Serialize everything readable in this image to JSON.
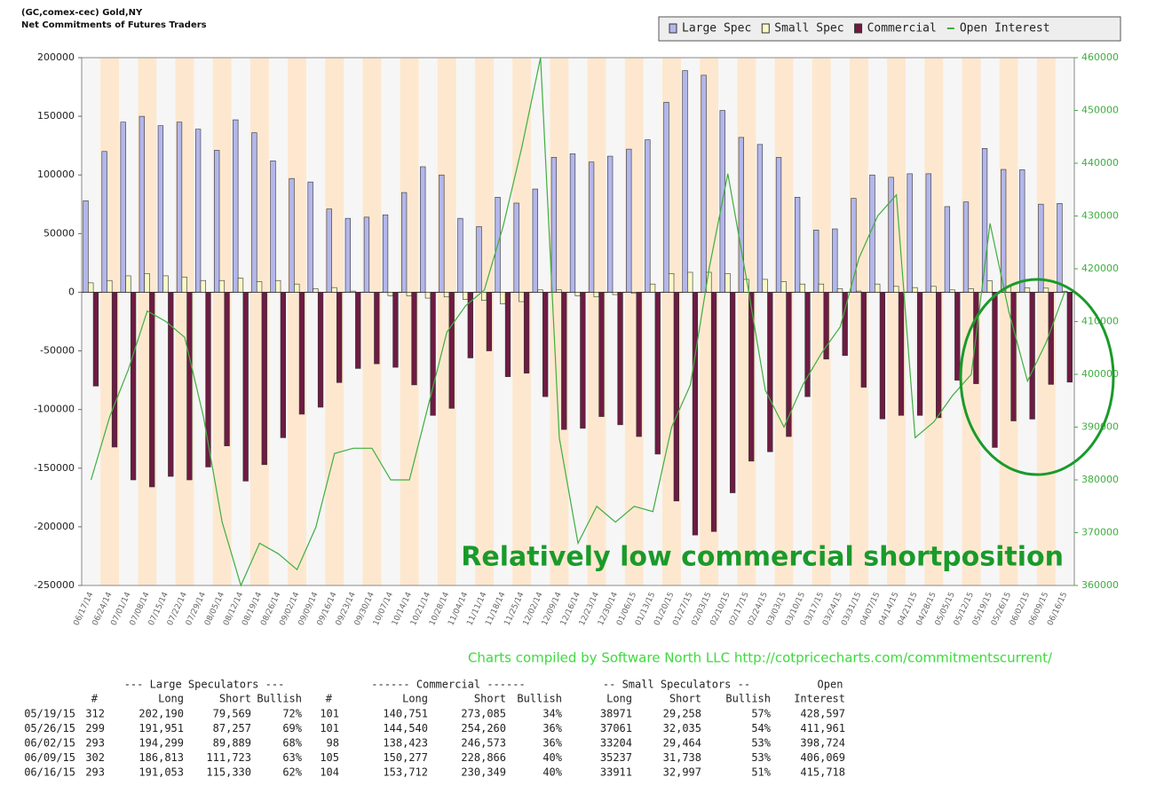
{
  "chart_data": {
    "type": "bar",
    "title": "(GC,comex-cec) Gold,NY",
    "subtitle": "Net Commitments of Futures Traders",
    "annotation": "Relatively low commercial shortposition",
    "credit": "Charts compiled by Software North LLC  http://cotpricecharts.com/commitmentscurrent/",
    "categories": [
      "06/17/14",
      "06/24/14",
      "07/01/14",
      "07/08/14",
      "07/15/14",
      "07/22/14",
      "07/29/14",
      "08/05/14",
      "08/12/14",
      "08/19/14",
      "08/26/14",
      "09/02/14",
      "09/09/14",
      "09/16/14",
      "09/23/14",
      "09/30/14",
      "10/07/14",
      "10/14/14",
      "10/21/14",
      "10/28/14",
      "11/04/14",
      "11/11/14",
      "11/18/14",
      "11/25/14",
      "12/02/14",
      "12/09/14",
      "12/16/14",
      "12/23/14",
      "12/30/14",
      "01/06/15",
      "01/13/15",
      "01/20/15",
      "01/27/15",
      "02/03/15",
      "02/10/15",
      "02/17/15",
      "02/24/15",
      "03/03/15",
      "03/10/15",
      "03/17/15",
      "03/24/15",
      "03/31/15",
      "04/07/15",
      "04/14/15",
      "04/21/15",
      "04/28/15",
      "05/05/15",
      "05/12/15",
      "05/19/15",
      "05/26/15",
      "06/02/15",
      "06/09/15",
      "06/16/15"
    ],
    "series": [
      {
        "name": "Large Spec",
        "color": "#b3b6ea",
        "values": [
          78000,
          120000,
          145000,
          150000,
          142000,
          145000,
          139000,
          121000,
          147000,
          136000,
          112000,
          97000,
          94000,
          71000,
          63000,
          64000,
          66000,
          85000,
          107000,
          100000,
          63000,
          56000,
          81000,
          76000,
          88000,
          115000,
          118000,
          111000,
          116000,
          122000,
          130000,
          162000,
          189000,
          185000,
          155000,
          132000,
          126000,
          115000,
          81000,
          53000,
          54000,
          80000,
          100000,
          98000,
          101000,
          101000,
          73000,
          77000,
          122621,
          104694,
          104410,
          75090,
          75723
        ]
      },
      {
        "name": "Small Spec",
        "color": "#fbfac6",
        "values": [
          8000,
          10000,
          14000,
          16000,
          14000,
          13000,
          10000,
          10000,
          12000,
          9000,
          10000,
          7000,
          3000,
          4000,
          1000,
          0,
          -3000,
          -3000,
          -5000,
          -4000,
          -6000,
          -7000,
          -10000,
          -8000,
          2000,
          2000,
          -3000,
          -4000,
          -2000,
          -1000,
          7000,
          16000,
          17000,
          17000,
          16000,
          11000,
          11000,
          9000,
          7000,
          7000,
          3000,
          1000,
          7000,
          5000,
          4000,
          5000,
          2000,
          3000,
          9713,
          5026,
          3740,
          3499,
          914
        ]
      },
      {
        "name": "Commercial",
        "color": "#6e1b42",
        "values": [
          -80000,
          -132000,
          -160000,
          -166000,
          -157000,
          -160000,
          -149000,
          -131000,
          -161000,
          -147000,
          -124000,
          -104000,
          -98000,
          -77000,
          -65000,
          -61000,
          -64000,
          -79000,
          -105000,
          -99000,
          -56000,
          -50000,
          -72000,
          -69000,
          -89000,
          -117000,
          -116000,
          -106000,
          -113000,
          -123000,
          -138000,
          -178000,
          -207000,
          -204000,
          -171000,
          -144000,
          -136000,
          -123000,
          -89000,
          -57000,
          -54000,
          -81000,
          -108000,
          -105000,
          -105000,
          -107000,
          -75000,
          -78000,
          -132334,
          -109720,
          -108150,
          -78589,
          -76637
        ]
      },
      {
        "name": "Open Interest",
        "color": "#3fae3f",
        "axis": "y2",
        "values": [
          380000,
          392000,
          401000,
          412000,
          410000,
          407000,
          392000,
          372000,
          360000,
          368000,
          366000,
          363000,
          371000,
          385000,
          386000,
          386000,
          380000,
          380000,
          394000,
          408000,
          413000,
          416000,
          428000,
          443000,
          460000,
          388000,
          368000,
          375000,
          372000,
          375000,
          374000,
          390000,
          398000,
          420000,
          438000,
          418000,
          397000,
          390000,
          398000,
          404000,
          409000,
          422000,
          430000,
          434000,
          388000,
          391000,
          396000,
          400000,
          428597,
          411961,
          398724,
          406069,
          415718
        ]
      }
    ],
    "ylim": [
      -250000,
      200000
    ],
    "yticks": [
      -250000,
      -200000,
      -150000,
      -100000,
      -50000,
      0,
      50000,
      100000,
      150000,
      200000
    ],
    "y2lim": [
      360000,
      460000
    ],
    "y2ticks": [
      360000,
      370000,
      380000,
      390000,
      400000,
      410000,
      420000,
      430000,
      440000,
      450000,
      460000
    ],
    "legend": "top-right"
  },
  "table": {
    "groups": [
      "--- Large Speculators ---",
      "------ Commercial ------",
      "-- Small Speculators --",
      "Open"
    ],
    "columns": [
      "#",
      "Long",
      "Short",
      "Bullish",
      "#",
      "Long",
      "Short",
      "Bullish",
      "Long",
      "Short",
      "Bullish",
      "Interest"
    ],
    "rows": [
      [
        "05/19/15",
        "312",
        "202,190",
        "79,569",
        "72%",
        "101",
        "140,751",
        "273,085",
        "34%",
        "38971",
        "29,258",
        "57%",
        "428,597"
      ],
      [
        "05/26/15",
        "299",
        "191,951",
        "87,257",
        "69%",
        "101",
        "144,540",
        "254,260",
        "36%",
        "37061",
        "32,035",
        "54%",
        "411,961"
      ],
      [
        "06/02/15",
        "293",
        "194,299",
        "89,889",
        "68%",
        "98",
        "138,423",
        "246,573",
        "36%",
        "33204",
        "29,464",
        "53%",
        "398,724"
      ],
      [
        "06/09/15",
        "302",
        "186,813",
        "111,723",
        "63%",
        "105",
        "150,277",
        "228,866",
        "40%",
        "35237",
        "31,738",
        "53%",
        "406,069"
      ],
      [
        "06/16/15",
        "293",
        "191,053",
        "115,330",
        "62%",
        "104",
        "153,712",
        "230,349",
        "40%",
        "33911",
        "32,997",
        "51%",
        "415,718"
      ]
    ]
  }
}
